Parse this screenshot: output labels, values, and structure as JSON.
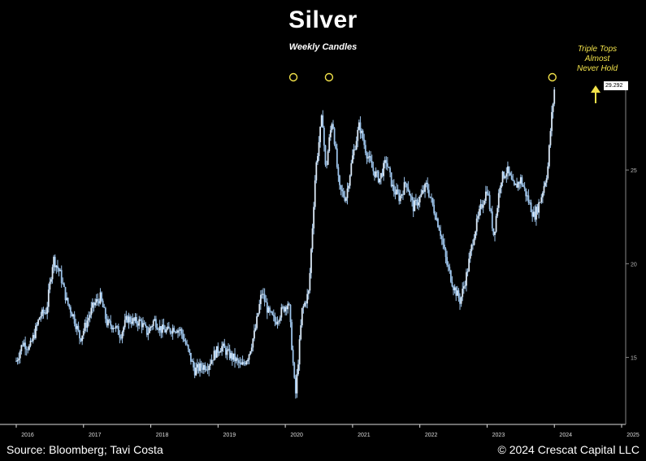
{
  "chart_data": {
    "type": "candlestick",
    "title": "Silver",
    "subtitle": "Weekly Candles",
    "frequency": "weekly",
    "xlim": [
      2015.95,
      2025.05
    ],
    "ylim": [
      11.4,
      30.6
    ],
    "y_ticks": [
      15,
      20,
      25
    ],
    "x_ticks": [
      2016,
      2017,
      2018,
      2019,
      2020,
      2021,
      2022,
      2023,
      2024,
      2025
    ],
    "last_value_label": "29.292",
    "candle_color": "#9cc3ea",
    "annotation": {
      "lines": [
        "Triple Tops",
        "Almost",
        "Never Hold"
      ],
      "color": "#f2e24a",
      "arrow": "up"
    },
    "highlighted_tops": [
      {
        "x": 2020.12,
        "y": 29.8
      },
      {
        "x": 2020.65,
        "y": 29.8
      },
      {
        "x": 2023.97,
        "y": 29.8
      }
    ],
    "series": [
      {
        "x": [
          2016.0,
          2016.1,
          2016.2,
          2016.3,
          2016.35,
          2016.45,
          2016.55,
          2016.65,
          2016.75,
          2016.85,
          2016.95,
          2017.05,
          2017.15,
          2017.25,
          2017.35,
          2017.45,
          2017.55,
          2017.65,
          2017.75,
          2017.85,
          2017.95,
          2018.05,
          2018.15,
          2018.25,
          2018.35,
          2018.45,
          2018.55,
          2018.65,
          2018.75,
          2018.85,
          2018.95,
          2019.05,
          2019.15,
          2019.25,
          2019.35,
          2019.45,
          2019.55,
          2019.65,
          2019.75,
          2019.85,
          2019.95,
          2020.05,
          2020.15,
          2020.2,
          2020.25,
          2020.35,
          2020.45,
          2020.55,
          2020.6,
          2020.65,
          2020.7,
          2020.8,
          2020.9,
          2021.0,
          2021.1,
          2021.2,
          2021.3,
          2021.4,
          2021.5,
          2021.6,
          2021.7,
          2021.8,
          2021.9,
          2022.0,
          2022.1,
          2022.2,
          2022.3,
          2022.4,
          2022.5,
          2022.6,
          2022.7,
          2022.8,
          2022.9,
          2023.0,
          2023.1,
          2023.2,
          2023.3,
          2023.4,
          2023.5,
          2023.6,
          2023.7,
          2023.8,
          2023.9,
          2023.95,
          2024.0
        ],
        "close": [
          14.8,
          15.8,
          15.5,
          16.6,
          17.2,
          17.5,
          20.3,
          19.5,
          18.0,
          17.2,
          16.0,
          16.9,
          17.8,
          18.2,
          16.8,
          16.7,
          16.2,
          17.1,
          16.9,
          16.9,
          16.3,
          17.0,
          16.5,
          16.4,
          16.6,
          16.4,
          15.4,
          14.3,
          14.5,
          14.6,
          15.2,
          15.6,
          15.2,
          14.9,
          14.5,
          15.1,
          16.4,
          18.5,
          17.4,
          16.9,
          17.5,
          18.0,
          12.9,
          15.2,
          17.5,
          18.5,
          25.0,
          28.0,
          24.9,
          26.5,
          27.8,
          24.0,
          23.5,
          25.7,
          27.4,
          26.0,
          25.0,
          24.5,
          25.5,
          24.0,
          23.5,
          24.4,
          23.0,
          23.5,
          24.2,
          23.0,
          21.8,
          20.0,
          18.8,
          18.0,
          19.5,
          21.5,
          22.9,
          24.0,
          21.5,
          24.5,
          25.0,
          24.0,
          24.5,
          23.5,
          22.5,
          23.5,
          25.0,
          27.5,
          29.3
        ]
      }
    ]
  },
  "footer": {
    "source": "Source: Bloomberg; Tavi Costa",
    "copyright": "© 2024 Crescat Capital LLC"
  }
}
